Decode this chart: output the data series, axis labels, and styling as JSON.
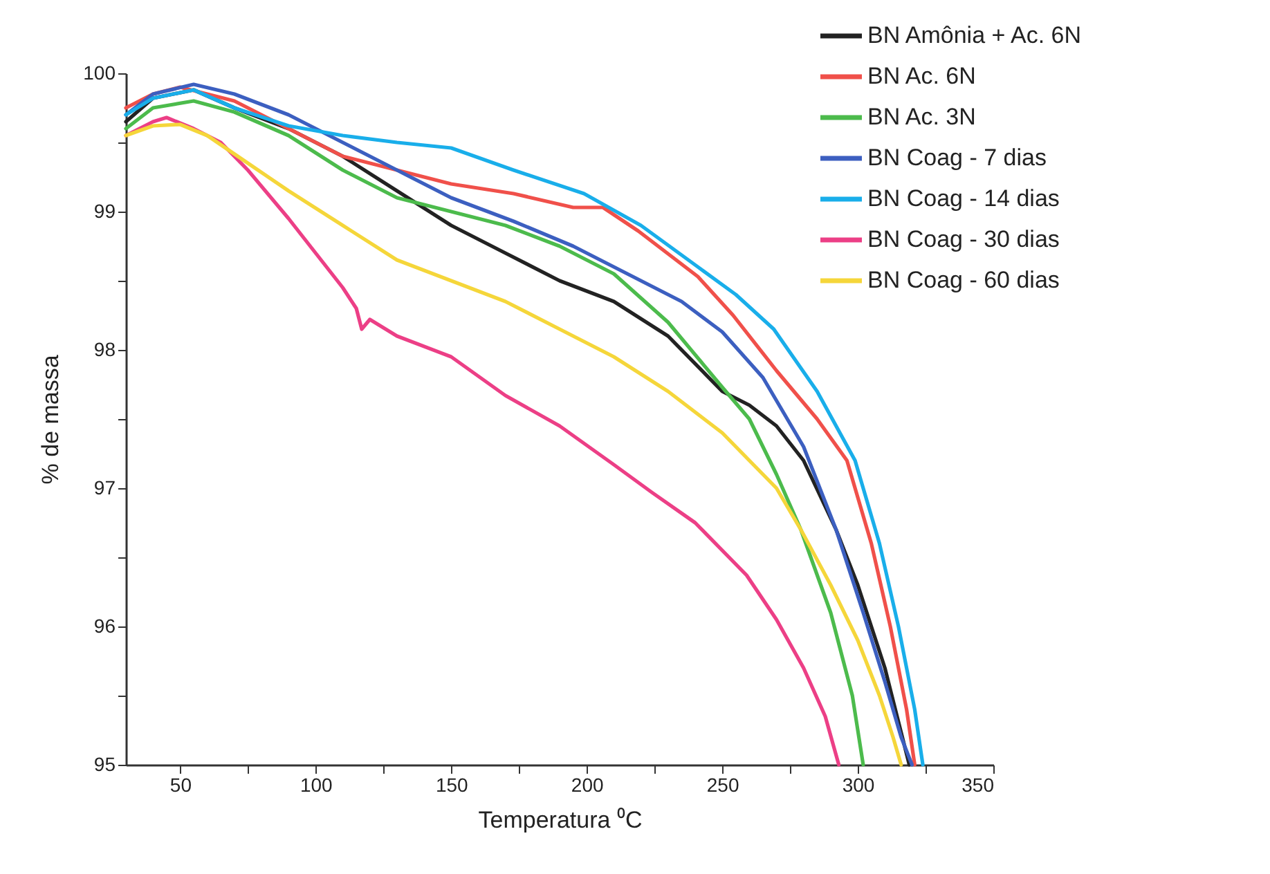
{
  "chart_data": {
    "type": "line",
    "xlabel": "Temperatura ⁰C",
    "ylabel": "% de massa",
    "xlim": [
      30,
      350
    ],
    "ylim": [
      95,
      100
    ],
    "xticks": [
      50,
      {
        "value": 75,
        "label": null
      },
      100,
      {
        "value": 125,
        "label": null
      },
      150,
      {
        "value": 175,
        "label": null
      },
      200,
      {
        "value": 225,
        "label": null
      },
      250,
      {
        "value": 275,
        "label": null
      },
      300,
      {
        "value": 325,
        "label": null
      },
      350
    ],
    "yticks": [
      95,
      {
        "value": 95.5,
        "label": null
      },
      96,
      {
        "value": 96.5,
        "label": null
      },
      97,
      {
        "value": 97.5,
        "label": null
      },
      98,
      {
        "value": 98.5,
        "label": null
      },
      99,
      {
        "value": 99.5,
        "label": null
      },
      100
    ],
    "grid": false,
    "legend": "top right",
    "marker": "none",
    "line_style": "solid",
    "series": [
      {
        "name": "BN Amônia + Ac. 6N",
        "color": "#222222",
        "x": [
          30,
          40,
          55,
          70,
          90,
          110,
          130,
          150,
          170,
          190,
          210,
          230,
          250,
          260,
          270,
          280,
          292,
          300,
          310,
          319
        ],
        "values": [
          99.65,
          99.82,
          99.88,
          99.75,
          99.6,
          99.4,
          99.15,
          98.9,
          98.7,
          98.5,
          98.35,
          98.1,
          97.7,
          97.6,
          97.45,
          97.2,
          96.7,
          96.3,
          95.7,
          95.0
        ]
      },
      {
        "name": "BN Ac. 6N",
        "color": "#f0504a",
        "x": [
          30,
          40,
          50,
          70,
          90,
          110,
          130,
          150,
          173,
          195,
          206,
          219,
          241,
          254,
          270,
          285,
          296,
          305,
          312,
          318,
          321
        ],
        "values": [
          99.75,
          99.85,
          99.9,
          99.8,
          99.6,
          99.4,
          99.3,
          99.2,
          99.13,
          99.03,
          99.03,
          98.86,
          98.53,
          98.25,
          97.85,
          97.5,
          97.2,
          96.6,
          96.0,
          95.4,
          95.0
        ]
      },
      {
        "name": "BN Ac. 3N",
        "color": "#4cbb4c",
        "x": [
          30,
          40,
          55,
          70,
          90,
          110,
          130,
          150,
          170,
          190,
          210,
          230,
          250,
          260,
          270,
          279,
          290,
          298,
          302
        ],
        "values": [
          99.6,
          99.75,
          99.8,
          99.72,
          99.55,
          99.3,
          99.1,
          99.0,
          98.9,
          98.75,
          98.55,
          98.2,
          97.73,
          97.5,
          97.1,
          96.7,
          96.1,
          95.5,
          95.0
        ]
      },
      {
        "name": "BN Coag - 7 dias",
        "color": "#3c5fc0",
        "x": [
          30,
          40,
          55,
          70,
          90,
          110,
          130,
          150,
          173,
          195,
          215,
          235,
          250,
          265,
          280,
          292,
          302,
          310,
          316,
          320
        ],
        "values": [
          99.7,
          99.85,
          99.92,
          99.85,
          99.7,
          99.5,
          99.3,
          99.1,
          98.93,
          98.75,
          98.55,
          98.35,
          98.13,
          97.8,
          97.3,
          96.7,
          96.1,
          95.6,
          95.2,
          95.0
        ]
      },
      {
        "name": "BN Coag - 14 dias",
        "color": "#19aeea",
        "x": [
          30,
          40,
          55,
          70,
          90,
          110,
          130,
          150,
          173,
          199,
          220,
          241,
          255,
          269,
          285,
          299,
          308,
          315,
          321,
          324
        ],
        "values": [
          99.7,
          99.82,
          99.88,
          99.75,
          99.62,
          99.55,
          99.5,
          99.46,
          99.3,
          99.13,
          98.9,
          98.6,
          98.4,
          98.15,
          97.7,
          97.2,
          96.6,
          96.0,
          95.4,
          95.0
        ]
      },
      {
        "name": "BN Coag - 30 dias",
        "color": "#ec3f86",
        "x": [
          30,
          40,
          45,
          55,
          65,
          75,
          90,
          100,
          110,
          115,
          117,
          120,
          130,
          150,
          170,
          190,
          210,
          224,
          240,
          259,
          270,
          280,
          288,
          293
        ],
        "values": [
          99.55,
          99.65,
          99.68,
          99.6,
          99.5,
          99.3,
          98.95,
          98.7,
          98.45,
          98.3,
          98.15,
          98.22,
          98.1,
          97.95,
          97.67,
          97.45,
          97.17,
          96.97,
          96.75,
          96.37,
          96.05,
          95.7,
          95.35,
          95.0
        ]
      },
      {
        "name": "BN Coag - 60 dias",
        "color": "#f5d63a",
        "x": [
          30,
          40,
          50,
          60,
          75,
          90,
          110,
          130,
          150,
          170,
          190,
          210,
          230,
          250,
          270,
          279,
          290,
          300,
          308,
          313,
          316
        ],
        "values": [
          99.55,
          99.62,
          99.63,
          99.55,
          99.35,
          99.15,
          98.9,
          98.65,
          98.5,
          98.35,
          98.15,
          97.95,
          97.7,
          97.4,
          97.0,
          96.7,
          96.3,
          95.9,
          95.5,
          95.2,
          95.0
        ]
      }
    ]
  }
}
